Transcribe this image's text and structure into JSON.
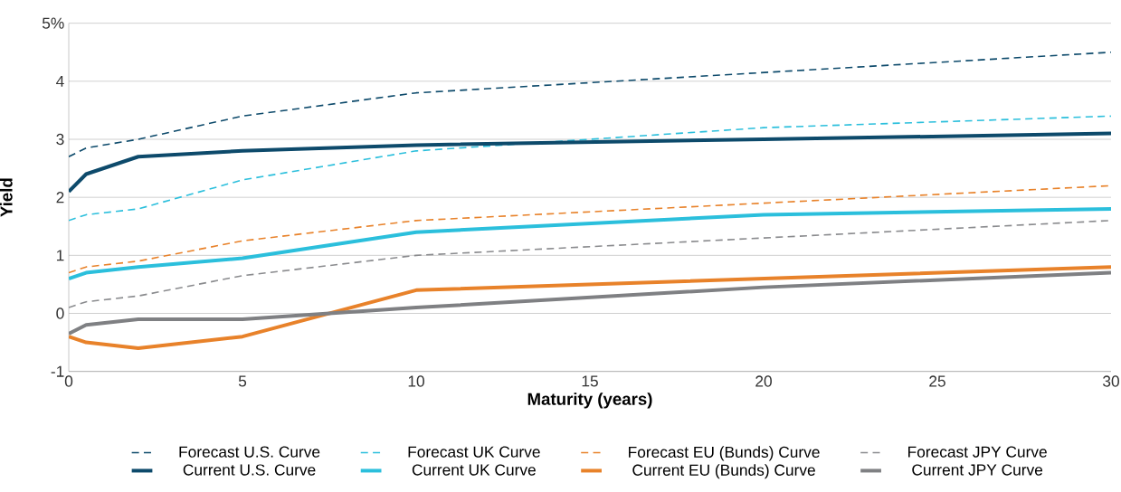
{
  "chart_data": {
    "type": "line",
    "xlabel": "Maturity (years)",
    "ylabel": "Yield",
    "xlim": [
      0,
      30
    ],
    "xticks": [
      0,
      5,
      10,
      15,
      20,
      25,
      30
    ],
    "ylim": [
      -1,
      5
    ],
    "yticks": [
      -1,
      0,
      1,
      2,
      3,
      4,
      {
        "value": 5,
        "label": "5%"
      }
    ],
    "grid": "y",
    "legend": "bottom",
    "marker": "none",
    "x": [
      0,
      0.5,
      2,
      5,
      10,
      20,
      30
    ],
    "series": [
      {
        "name": "Forecast U.S. Curve",
        "color": "#0d4a6b",
        "line_style": "dashed",
        "values": [
          2.7,
          2.85,
          3.0,
          3.4,
          3.8,
          4.15,
          4.5
        ]
      },
      {
        "name": "Forecast UK Curve",
        "color": "#2bbfdc",
        "line_style": "dashed",
        "values": [
          1.6,
          1.7,
          1.8,
          2.3,
          2.8,
          3.2,
          3.4
        ]
      },
      {
        "name": "Forecast EU (Bunds) Curve",
        "color": "#e8822a",
        "line_style": "dashed",
        "values": [
          0.7,
          0.8,
          0.9,
          1.25,
          1.6,
          1.9,
          2.2
        ]
      },
      {
        "name": "Forecast JPY Curve",
        "color": "#8a8b8e",
        "line_style": "dashed",
        "values": [
          0.1,
          0.2,
          0.3,
          0.65,
          1.0,
          1.3,
          1.6
        ]
      },
      {
        "name": "Current U.S. Curve",
        "color": "#0d4a6b",
        "line_style": "solid",
        "values": [
          2.1,
          2.4,
          2.7,
          2.8,
          2.9,
          3.0,
          3.1
        ]
      },
      {
        "name": "Current UK Curve",
        "color": "#2bbfdc",
        "line_style": "solid",
        "values": [
          0.6,
          0.7,
          0.8,
          0.95,
          1.4,
          1.7,
          1.8
        ]
      },
      {
        "name": "Current EU (Bunds) Curve",
        "color": "#e8822a",
        "line_style": "solid",
        "values": [
          -0.4,
          -0.5,
          -0.6,
          -0.4,
          0.4,
          0.6,
          0.8
        ]
      },
      {
        "name": "Current JPY Curve",
        "color": "#7f8083",
        "line_style": "solid",
        "values": [
          -0.35,
          -0.2,
          -0.1,
          -0.1,
          0.1,
          0.45,
          0.7
        ]
      }
    ]
  }
}
